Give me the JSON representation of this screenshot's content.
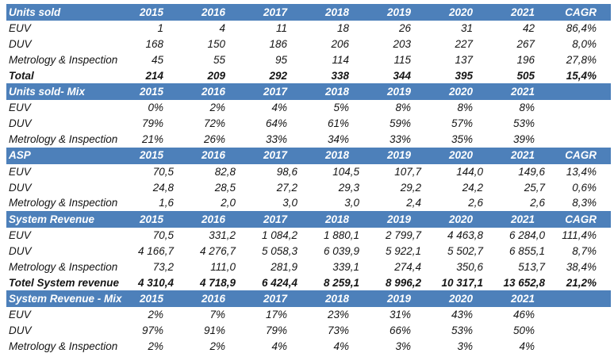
{
  "colors": {
    "header_bg": "#4d80ba",
    "header_text": "#ffffff",
    "body_text": "#141414"
  },
  "table": {
    "columns": [
      "2015",
      "2016",
      "2017",
      "2018",
      "2019",
      "2020",
      "2021",
      "CAGR"
    ],
    "sections": [
      {
        "title": "Units sold",
        "show_cagr_header": true,
        "format": "int",
        "rows": [
          {
            "label": "EUV",
            "values": [
              "1",
              "4",
              "11",
              "18",
              "26",
              "31",
              "42"
            ],
            "cagr": "86,4%",
            "bold": false
          },
          {
            "label": "DUV",
            "values": [
              "168",
              "150",
              "186",
              "206",
              "203",
              "227",
              "267"
            ],
            "cagr": "8,0%",
            "bold": false
          },
          {
            "label": "Metrology & Inspection",
            "values": [
              "45",
              "55",
              "95",
              "114",
              "115",
              "137",
              "196"
            ],
            "cagr": "27,8%",
            "bold": false
          },
          {
            "label": "Total",
            "values": [
              "214",
              "209",
              "292",
              "338",
              "344",
              "395",
              "505"
            ],
            "cagr": "15,4%",
            "bold": true
          }
        ]
      },
      {
        "title": "Units sold- Mix",
        "show_cagr_header": false,
        "format": "pct",
        "rows": [
          {
            "label": "EUV",
            "values": [
              "0%",
              "2%",
              "4%",
              "5%",
              "8%",
              "8%",
              "8%"
            ],
            "cagr": "",
            "bold": false
          },
          {
            "label": "DUV",
            "values": [
              "79%",
              "72%",
              "64%",
              "61%",
              "59%",
              "57%",
              "53%"
            ],
            "cagr": "",
            "bold": false
          },
          {
            "label": "Metrology & Inspection",
            "values": [
              "21%",
              "26%",
              "33%",
              "34%",
              "33%",
              "35%",
              "39%"
            ],
            "cagr": "",
            "bold": false
          }
        ]
      },
      {
        "title": "ASP",
        "show_cagr_header": true,
        "format": "dec",
        "rows": [
          {
            "label": "EUV",
            "values": [
              "70,5",
              "82,8",
              "98,6",
              "104,5",
              "107,7",
              "144,0",
              "149,6"
            ],
            "cagr": "13,4%",
            "bold": false
          },
          {
            "label": "DUV",
            "values": [
              "24,8",
              "28,5",
              "27,2",
              "29,3",
              "29,2",
              "24,2",
              "25,7"
            ],
            "cagr": "0,6%",
            "bold": false
          },
          {
            "label": "Metrology & Inspection",
            "values": [
              "1,6",
              "2,0",
              "3,0",
              "3,0",
              "2,4",
              "2,6",
              "2,6"
            ],
            "cagr": "8,3%",
            "bold": false
          }
        ]
      },
      {
        "title": "System Revenue",
        "show_cagr_header": true,
        "format": "dec",
        "rows": [
          {
            "label": "EUV",
            "values": [
              "70,5",
              "331,2",
              "1 084,2",
              "1 880,1",
              "2 799,7",
              "4 463,8",
              "6 284,0"
            ],
            "cagr": "111,4%",
            "bold": false
          },
          {
            "label": "DUV",
            "values": [
              "4 166,7",
              "4 276,7",
              "5 058,3",
              "6 039,9",
              "5 922,1",
              "5 502,7",
              "6 855,1"
            ],
            "cagr": "8,7%",
            "bold": false
          },
          {
            "label": "Metrology & Inspection",
            "values": [
              "73,2",
              "111,0",
              "281,9",
              "339,1",
              "274,4",
              "350,6",
              "513,7"
            ],
            "cagr": "38,4%",
            "bold": false
          },
          {
            "label": "Totel System revenue",
            "values": [
              "4 310,4",
              "4 718,9",
              "6 424,4",
              "8 259,1",
              "8 996,2",
              "10 317,1",
              "13 652,8"
            ],
            "cagr": "21,2%",
            "bold": true
          }
        ]
      },
      {
        "title": "System Revenue - Mix",
        "show_cagr_header": false,
        "format": "pct",
        "rows": [
          {
            "label": "EUV",
            "values": [
              "2%",
              "7%",
              "17%",
              "23%",
              "31%",
              "43%",
              "46%"
            ],
            "cagr": "",
            "bold": false
          },
          {
            "label": "DUV",
            "values": [
              "97%",
              "91%",
              "79%",
              "73%",
              "66%",
              "53%",
              "50%"
            ],
            "cagr": "",
            "bold": false
          },
          {
            "label": "Metrology & Inspection",
            "values": [
              "2%",
              "2%",
              "4%",
              "4%",
              "3%",
              "3%",
              "4%"
            ],
            "cagr": "",
            "bold": false
          }
        ]
      }
    ]
  }
}
